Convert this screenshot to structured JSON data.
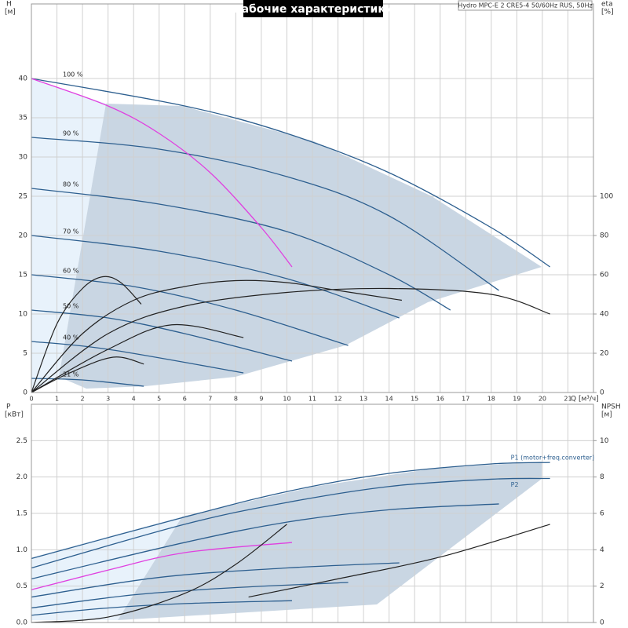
{
  "chart_data": [
    {
      "type": "line",
      "title": "Рабочие характеристики",
      "subtitle": "Hydro MPC-E 2 CRE5-4 50/60Hz RUS, 50Hz",
      "ylabel": "H",
      "yunit": "[м]",
      "y2label": "eta",
      "y2unit": "[%]",
      "xlabel": "Q [м³/ч]",
      "xlim": [
        0,
        22
      ],
      "xticks": [
        0,
        1,
        2,
        3,
        4,
        5,
        6,
        7,
        8,
        9,
        10,
        11,
        12,
        13,
        14,
        15,
        16,
        17,
        18,
        19,
        20,
        21
      ],
      "ylim": [
        0,
        49.5
      ],
      "yticks": [
        0,
        5,
        10,
        15,
        20,
        25,
        30,
        35,
        40
      ],
      "y2lim": [
        0,
        198
      ],
      "y2ticks": [
        0,
        20,
        40,
        60,
        80,
        100
      ],
      "grid": true,
      "series": [
        {
          "name": "100 %",
          "color": "#2d5f8f",
          "x": [
            0,
            6,
            10,
            14,
            18,
            20.3
          ],
          "values": [
            40,
            36.5,
            33,
            28,
            21,
            16
          ]
        },
        {
          "name": "90 %",
          "color": "#2d5f8f",
          "x": [
            0,
            5,
            10,
            14,
            18.3
          ],
          "values": [
            32.5,
            31,
            27.5,
            22.5,
            13
          ]
        },
        {
          "name": "80 %",
          "color": "#2d5f8f",
          "x": [
            0,
            5,
            10,
            14,
            16.4
          ],
          "values": [
            26,
            24,
            20.5,
            15,
            10.5
          ]
        },
        {
          "name": "70 %",
          "color": "#2d5f8f",
          "x": [
            0,
            5,
            10,
            14.4
          ],
          "values": [
            20,
            18,
            14.5,
            9.5
          ]
        },
        {
          "name": "60 %",
          "color": "#2d5f8f",
          "x": [
            0,
            4,
            8,
            12.4
          ],
          "values": [
            15,
            13.5,
            10.5,
            6
          ]
        },
        {
          "name": "50 %",
          "color": "#2d5f8f",
          "x": [
            0,
            3,
            6,
            10.2
          ],
          "values": [
            10.5,
            9.5,
            7.5,
            4
          ]
        },
        {
          "name": "40 %",
          "color": "#2d5f8f",
          "x": [
            0,
            3,
            8.3
          ],
          "values": [
            6.5,
            5.5,
            2.5
          ]
        },
        {
          "name": "21 %",
          "color": "#2d5f8f",
          "x": [
            0,
            2,
            4.4
          ],
          "values": [
            1.8,
            1.6,
            0.8
          ]
        },
        {
          "color": "#e040e0",
          "x": [
            0,
            3,
            5,
            7,
            9,
            10.2
          ],
          "values": [
            40,
            36.5,
            33,
            28,
            21,
            16
          ]
        },
        {
          "color": "#222222",
          "axis": "y2",
          "x": [
            0,
            1,
            2,
            2.8,
            3.5,
            4.3
          ],
          "values": [
            0,
            35,
            53,
            59,
            56,
            45
          ]
        },
        {
          "color": "#222222",
          "axis": "y2",
          "x": [
            0,
            2,
            4,
            6,
            8,
            10,
            12,
            14.5
          ],
          "values": [
            0,
            30,
            47,
            54,
            57,
            56,
            52,
            47
          ]
        },
        {
          "color": "#222222",
          "axis": "y2",
          "x": [
            0,
            3,
            6,
            10,
            14,
            18,
            20.3
          ],
          "values": [
            0,
            30,
            44,
            51,
            53,
            50,
            40
          ]
        },
        {
          "color": "#222222",
          "axis": "y2",
          "x": [
            0,
            3,
            5.5,
            8.3
          ],
          "values": [
            0,
            22,
            34.5,
            28
          ]
        },
        {
          "color": "#222222",
          "axis": "y2",
          "x": [
            0,
            1.5,
            3.2,
            4.4
          ],
          "values": [
            0,
            10,
            18,
            14.5
          ]
        }
      ]
    },
    {
      "type": "line",
      "ylabel": "P",
      "yunit": "[кВт]",
      "y2label": "NPSH",
      "y2unit": "[м]",
      "ylim": [
        0,
        3
      ],
      "yticks": [
        {
          "value": 0,
          "label": "0.0"
        },
        0.5,
        {
          "value": 1,
          "label": "1.0"
        },
        1.5,
        {
          "value": 2,
          "label": "2.0"
        },
        2.5
      ],
      "y2lim": [
        0,
        12
      ],
      "y2ticks": [
        0,
        2,
        4,
        6,
        8,
        10
      ],
      "grid": true,
      "series": [
        {
          "name": "P1 (motor+freq.converter)",
          "color": "#2d5f8f",
          "x": [
            0,
            6,
            10,
            14,
            18,
            20.3
          ],
          "values": [
            0.88,
            1.45,
            1.8,
            2.05,
            2.18,
            2.2
          ]
        },
        {
          "name": "P2",
          "color": "#2d5f8f",
          "x": [
            0,
            6,
            10,
            14,
            18,
            20.3
          ],
          "values": [
            0.75,
            1.35,
            1.65,
            1.87,
            1.97,
            1.98
          ]
        },
        {
          "color": "#2d5f8f",
          "x": [
            0,
            6,
            10,
            14,
            18.3
          ],
          "values": [
            0.6,
            1.1,
            1.38,
            1.55,
            1.63
          ]
        },
        {
          "color": "#2d5f8f",
          "x": [
            0,
            5,
            10,
            14.4
          ],
          "values": [
            0.35,
            0.62,
            0.75,
            0.82
          ]
        },
        {
          "color": "#2d5f8f",
          "x": [
            0,
            4,
            8,
            12.4
          ],
          "values": [
            0.2,
            0.38,
            0.48,
            0.55
          ]
        },
        {
          "color": "#2d5f8f",
          "x": [
            0,
            3,
            6,
            10.2
          ],
          "values": [
            0.1,
            0.2,
            0.26,
            0.3
          ]
        },
        {
          "color": "#e040e0",
          "x": [
            0,
            3,
            6,
            10.2
          ],
          "values": [
            0.45,
            0.72,
            0.96,
            1.1
          ]
        },
        {
          "color": "#222222",
          "axis": "y2",
          "x": [
            8.5,
            12,
            16,
            20.3
          ],
          "values": [
            1.4,
            2.4,
            3.6,
            5.4
          ]
        },
        {
          "color": "#222222",
          "axis": "y2",
          "x": [
            0,
            3,
            6,
            8,
            10
          ],
          "values": [
            0,
            0.3,
            1.6,
            3.2,
            5.4
          ]
        }
      ]
    }
  ]
}
